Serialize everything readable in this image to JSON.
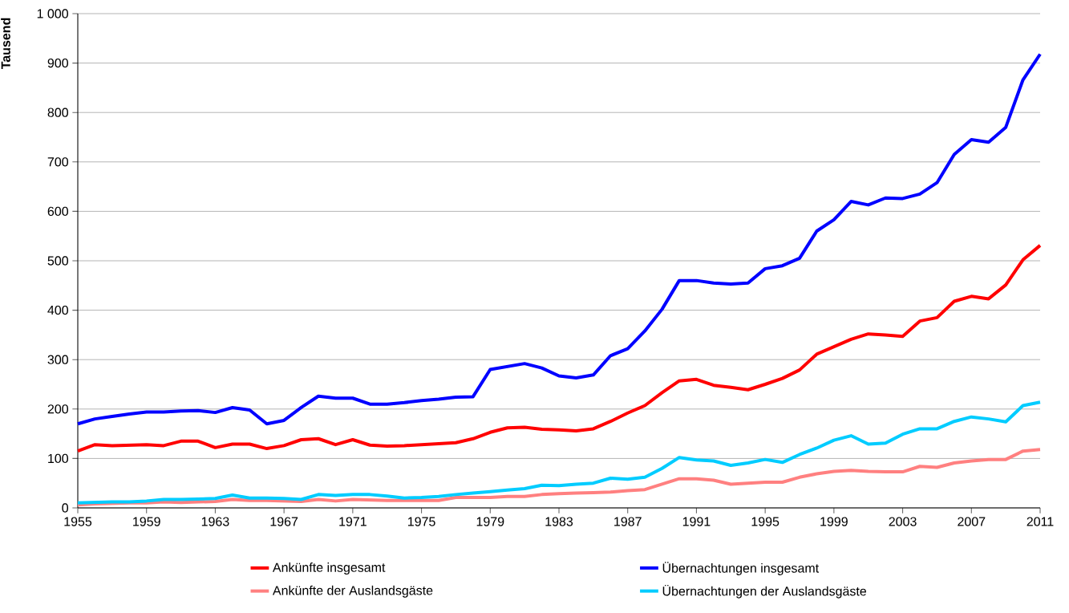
{
  "chart_data": {
    "type": "line",
    "ylabel": "Tausend",
    "x": [
      1955,
      1956,
      1957,
      1958,
      1959,
      1960,
      1961,
      1962,
      1963,
      1964,
      1965,
      1966,
      1967,
      1968,
      1969,
      1970,
      1971,
      1972,
      1973,
      1974,
      1975,
      1976,
      1977,
      1978,
      1979,
      1980,
      1981,
      1982,
      1983,
      1984,
      1985,
      1986,
      1987,
      1988,
      1989,
      1990,
      1991,
      1992,
      1993,
      1994,
      1995,
      1996,
      1997,
      1998,
      1999,
      2000,
      2001,
      2002,
      2003,
      2004,
      2005,
      2006,
      2007,
      2008,
      2009,
      2010,
      2011
    ],
    "series": [
      {
        "name": "Ankünfte insgesamt",
        "color": "#ff0000",
        "values": [
          115,
          128,
          126,
          127,
          128,
          126,
          135,
          135,
          122,
          129,
          129,
          120,
          126,
          138,
          140,
          128,
          138,
          127,
          125,
          126,
          128,
          130,
          132,
          140,
          153,
          162,
          163,
          159,
          158,
          156,
          160,
          175,
          192,
          207,
          233,
          257,
          260,
          248,
          244,
          239,
          250,
          262,
          279,
          311,
          326,
          341,
          352,
          350,
          347,
          378,
          385,
          418,
          428,
          423,
          451,
          502,
          531
        ]
      },
      {
        "name": "Übernachtungen insgesamt",
        "color": "#0000ff",
        "values": [
          170,
          180,
          185,
          190,
          194,
          194,
          196,
          197,
          193,
          203,
          198,
          170,
          177,
          203,
          226,
          222,
          222,
          210,
          210,
          213,
          217,
          220,
          224,
          225,
          280,
          286,
          292,
          283,
          267,
          263,
          269,
          308,
          322,
          358,
          402,
          460,
          460,
          455,
          453,
          455,
          484,
          490,
          505,
          560,
          583,
          620,
          613,
          627,
          626,
          635,
          658,
          715,
          745,
          740,
          770,
          866,
          918
        ]
      },
      {
        "name": "Ankünfte der Auslandsgäste",
        "color": "#ff8080",
        "values": [
          6,
          8,
          9,
          10,
          10,
          12,
          11,
          12,
          13,
          17,
          15,
          15,
          14,
          13,
          17,
          14,
          17,
          16,
          15,
          15,
          15,
          15,
          21,
          21,
          21,
          23,
          23,
          27,
          29,
          30,
          31,
          32,
          35,
          37,
          48,
          59,
          59,
          56,
          48,
          50,
          52,
          52,
          62,
          69,
          74,
          76,
          74,
          73,
          73,
          84,
          82,
          91,
          95,
          98,
          98,
          115,
          118
        ]
      },
      {
        "name": "Übernachtungen der Auslandsgäste",
        "color": "#00ccff",
        "values": [
          10,
          11,
          12,
          12,
          14,
          17,
          17,
          18,
          19,
          26,
          20,
          20,
          19,
          17,
          27,
          25,
          27,
          27,
          24,
          20,
          21,
          23,
          27,
          30,
          33,
          36,
          39,
          46,
          45,
          48,
          50,
          60,
          58,
          62,
          80,
          102,
          97,
          95,
          86,
          91,
          98,
          92,
          108,
          121,
          137,
          146,
          129,
          131,
          149,
          160,
          160,
          175,
          184,
          180,
          174,
          207,
          214
        ]
      }
    ],
    "xlim": [
      1955,
      2011
    ],
    "xticks": [
      1955,
      1959,
      1963,
      1967,
      1971,
      1975,
      1979,
      1983,
      1987,
      1991,
      1995,
      1999,
      2003,
      2007,
      2011
    ],
    "ylim": [
      0,
      1000
    ],
    "yticks": [
      0,
      100,
      200,
      300,
      400,
      500,
      600,
      700,
      800,
      900,
      {
        "value": 1000,
        "label": "1 000"
      }
    ],
    "grid": "y",
    "legend": "bottom"
  }
}
